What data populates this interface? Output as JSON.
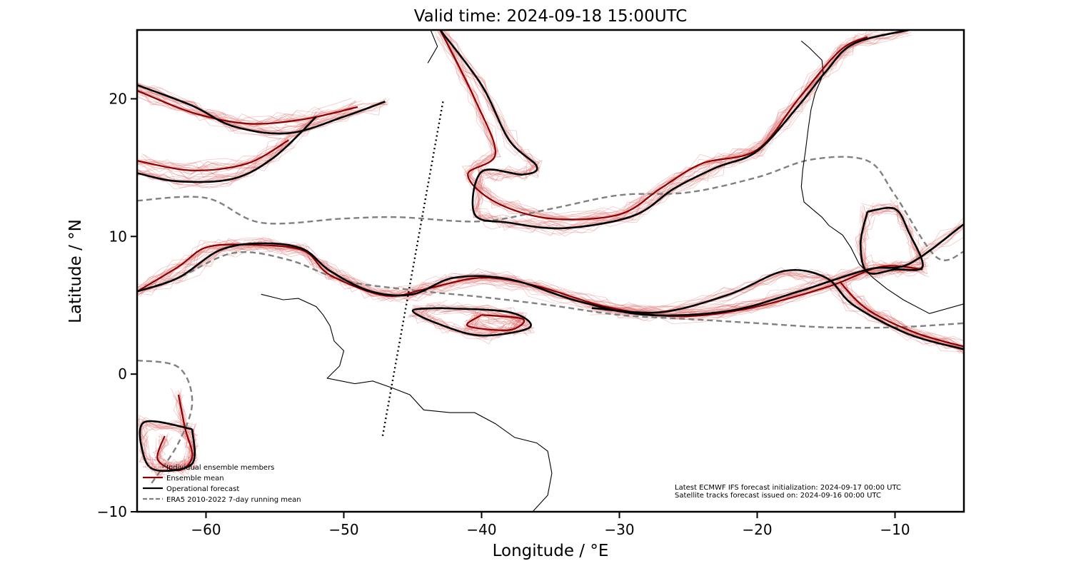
{
  "title": "Valid time: 2024-09-18 15:00UTC",
  "xlabel": "Longitude / °E",
  "ylabel": "Latitude / °N",
  "xlim": [
    -65,
    -5
  ],
  "ylim": [
    -10,
    25
  ],
  "xticks": [
    {
      "value": -60,
      "label": "−60"
    },
    {
      "value": -50,
      "label": "−50"
    },
    {
      "value": -40,
      "label": "−40"
    },
    {
      "value": -30,
      "label": "−30"
    },
    {
      "value": -20,
      "label": "−20"
    },
    {
      "value": -10,
      "label": "−10"
    }
  ],
  "yticks": [
    {
      "value": 20,
      "label": "20"
    },
    {
      "value": 10,
      "label": "10"
    },
    {
      "value": 0,
      "label": "0"
    },
    {
      "value": -10,
      "label": "−10"
    }
  ],
  "legend": {
    "placement": "bottom-left",
    "entries": [
      {
        "label": "Individual ensemble members",
        "color": "#e07878",
        "style": "thin"
      },
      {
        "label": "Ensemble mean",
        "color": "#8b0000",
        "style": "solid"
      },
      {
        "label": "Operational forecast",
        "color": "#000000",
        "style": "solid"
      },
      {
        "label": "ERA5 2010-2022 7-day running mean",
        "color": "#808080",
        "style": "dashed"
      }
    ]
  },
  "notes": [
    "Latest ECMWF IFS forecast initialization: 2024-09-17 00:00 UTC",
    "Satellite tracks forecast issued on: 2024-09-16 00:00 UTC"
  ],
  "colors": {
    "members": "#e07878",
    "mean": "#8b0000",
    "operational": "#000000",
    "era5": "#808080",
    "coast": "#000000"
  },
  "chart_data": {
    "type": "map",
    "satellite_track": [
      [
        -42.8,
        19.8
      ],
      [
        -47.2,
        -4.6
      ]
    ],
    "era5_contours": [
      [
        [
          -65,
          12.6
        ],
        [
          -60,
          12.8
        ],
        [
          -56,
          11.0
        ],
        [
          -50,
          11.3
        ],
        [
          -46,
          11.4
        ],
        [
          -40,
          11.1
        ],
        [
          -35,
          12.0
        ],
        [
          -30,
          13.0
        ],
        [
          -25,
          13.2
        ],
        [
          -20,
          14.3
        ],
        [
          -16,
          15.6
        ],
        [
          -12,
          15.5
        ],
        [
          -10,
          13.0
        ],
        [
          -7,
          8.5
        ],
        [
          -5,
          8.9
        ]
      ],
      [
        [
          -65,
          6.0
        ],
        [
          -62,
          7.0
        ],
        [
          -58,
          8.8
        ],
        [
          -54,
          8.3
        ],
        [
          -50,
          6.8
        ],
        [
          -45,
          6.1
        ],
        [
          -40,
          5.6
        ],
        [
          -35,
          5.0
        ],
        [
          -30,
          4.3
        ],
        [
          -25,
          4.0
        ],
        [
          -20,
          3.7
        ],
        [
          -15,
          3.4
        ],
        [
          -10,
          3.4
        ],
        [
          -5,
          3.7
        ]
      ],
      [
        [
          -65,
          1.0
        ],
        [
          -62,
          0.5
        ],
        [
          -61,
          -2.0
        ],
        [
          -62,
          -5.0
        ],
        [
          -64,
          -8.0
        ]
      ]
    ],
    "operational_contours": [
      [
        [
          -65,
          21.0
        ],
        [
          -61,
          19.5
        ],
        [
          -58,
          18.0
        ],
        [
          -54,
          17.5
        ],
        [
          -50,
          18.7
        ],
        [
          -47,
          19.8
        ]
      ],
      [
        [
          -65,
          14.6
        ],
        [
          -62,
          14.0
        ],
        [
          -58,
          14.2
        ],
        [
          -55,
          15.8
        ],
        [
          -52,
          18.7
        ]
      ],
      [
        [
          -65,
          6.0
        ],
        [
          -62,
          7.0
        ],
        [
          -59,
          9.0
        ],
        [
          -56,
          9.5
        ],
        [
          -53,
          9.1
        ],
        [
          -51,
          7.5
        ],
        [
          -48,
          6.0
        ],
        [
          -45,
          5.8
        ],
        [
          -42,
          7.0
        ],
        [
          -38,
          6.9
        ],
        [
          -33,
          5.3
        ],
        [
          -28,
          4.3
        ],
        [
          -22,
          4.6
        ],
        [
          -17,
          6.0
        ],
        [
          -12,
          7.6
        ],
        [
          -9,
          8.0
        ],
        [
          -5,
          10.9
        ]
      ],
      [
        [
          -43,
          25
        ],
        [
          -40,
          21
        ],
        [
          -38,
          17
        ],
        [
          -36,
          15.1
        ],
        [
          -37,
          14.5
        ],
        [
          -40,
          14.7
        ],
        [
          -40.5,
          11.6
        ],
        [
          -38,
          11.0
        ],
        [
          -34,
          10.6
        ],
        [
          -29,
          11.5
        ],
        [
          -26,
          13.5
        ],
        [
          -23,
          15.0
        ],
        [
          -20,
          16.2
        ],
        [
          -17,
          19.5
        ],
        [
          -15,
          22.0
        ],
        [
          -13,
          24.0
        ],
        [
          -9,
          25
        ]
      ],
      [
        [
          -5,
          1.8
        ],
        [
          -9,
          2.9
        ],
        [
          -13,
          5.0
        ],
        [
          -15,
          7.0
        ],
        [
          -18,
          7.5
        ],
        [
          -22,
          5.8
        ],
        [
          -27,
          4.5
        ],
        [
          -32,
          4.8
        ]
      ],
      [
        [
          -12,
          11.8
        ],
        [
          -10,
          12.0
        ],
        [
          -9,
          10.3
        ],
        [
          -8,
          7.8
        ],
        [
          -10,
          7.6
        ],
        [
          -12,
          7.4
        ],
        [
          -12.5,
          9.5
        ],
        [
          -12,
          11.8
        ]
      ],
      [
        [
          -61,
          -4.0
        ],
        [
          -61,
          -6.5
        ],
        [
          -63.5,
          -7.0
        ],
        [
          -64.5,
          -6.0
        ],
        [
          -64.5,
          -3.5
        ],
        [
          -61,
          -4.0
        ]
      ],
      [
        [
          -43,
          4.8
        ],
        [
          -38,
          4.5
        ],
        [
          -36.5,
          3.4
        ],
        [
          -40,
          2.8
        ],
        [
          -43,
          3.6
        ],
        [
          -45,
          4.6
        ],
        [
          -43,
          4.8
        ]
      ]
    ],
    "mean_contours": [
      [
        [
          -65,
          20.6
        ],
        [
          -61,
          19.0
        ],
        [
          -57,
          18.2
        ],
        [
          -53,
          18.5
        ],
        [
          -49,
          19.4
        ]
      ],
      [
        [
          -65,
          15.5
        ],
        [
          -61,
          14.8
        ],
        [
          -57,
          15.3
        ],
        [
          -54,
          17.0
        ]
      ],
      [
        [
          -65,
          6.0
        ],
        [
          -62,
          7.8
        ],
        [
          -60,
          9.2
        ],
        [
          -57,
          9.4
        ],
        [
          -53,
          9.0
        ],
        [
          -51,
          7.2
        ],
        [
          -47,
          5.7
        ],
        [
          -44,
          6.2
        ],
        [
          -40,
          7.0
        ],
        [
          -36,
          6.4
        ],
        [
          -31,
          4.9
        ],
        [
          -26,
          4.2
        ],
        [
          -21,
          4.7
        ],
        [
          -15,
          6.3
        ],
        [
          -11,
          7.8
        ],
        [
          -8,
          7.6
        ]
      ],
      [
        [
          -43,
          25
        ],
        [
          -40.5,
          20
        ],
        [
          -39,
          16
        ],
        [
          -41,
          14.5
        ],
        [
          -39,
          12.5
        ],
        [
          -35,
          11.3
        ],
        [
          -30,
          11.6
        ],
        [
          -27,
          13.5
        ],
        [
          -24,
          15.3
        ],
        [
          -20,
          16.3
        ],
        [
          -17,
          20.0
        ],
        [
          -14,
          23.5
        ],
        [
          -12,
          24.5
        ]
      ],
      [
        [
          -40,
          4.3
        ],
        [
          -37,
          4.0
        ],
        [
          -38,
          3.2
        ],
        [
          -41,
          3.5
        ],
        [
          -40,
          4.3
        ]
      ],
      [
        [
          -5,
          2.0
        ],
        [
          -8.5,
          3.0
        ],
        [
          -12,
          4.7
        ],
        [
          -14,
          6.7
        ]
      ],
      [
        [
          -62,
          -1.5
        ],
        [
          -61.5,
          -4.0
        ],
        [
          -61,
          -6.0
        ],
        [
          -62,
          -7.0
        ],
        [
          -63.5,
          -6.2
        ],
        [
          -63,
          -4.5
        ]
      ]
    ],
    "ensemble_member_count": 50,
    "coastlines": [
      [
        [
          -56,
          5.8
        ],
        [
          -54.4,
          5.4
        ],
        [
          -53.3,
          5.5
        ],
        [
          -52,
          4.9
        ],
        [
          -51.5,
          4.3
        ],
        [
          -51,
          3.5
        ],
        [
          -50.7,
          2.4
        ],
        [
          -50.0,
          1.7
        ],
        [
          -50.3,
          0.6
        ],
        [
          -51.2,
          -0.3
        ],
        [
          -49.2,
          -0.7
        ],
        [
          -47.9,
          -0.5
        ],
        [
          -46.5,
          -1.0
        ],
        [
          -45.2,
          -1.5
        ],
        [
          -44.2,
          -2.6
        ],
        [
          -42.3,
          -2.8
        ],
        [
          -40.5,
          -2.8
        ],
        [
          -39.0,
          -3.6
        ],
        [
          -37.6,
          -4.6
        ],
        [
          -36.0,
          -5.0
        ],
        [
          -35.2,
          -5.6
        ],
        [
          -34.9,
          -7.2
        ],
        [
          -35.2,
          -8.8
        ],
        [
          -36.3,
          -10
        ]
      ],
      [
        [
          -43.7,
          25
        ],
        [
          -43.2,
          23.8
        ],
        [
          -43.9,
          22.6
        ]
      ],
      [
        [
          -16.8,
          24.2
        ],
        [
          -16.2,
          23.7
        ],
        [
          -15.3,
          22.8
        ],
        [
          -15.2,
          21.8
        ],
        [
          -15.8,
          20.4
        ],
        [
          -16.1,
          19.2
        ],
        [
          -16.3,
          17.8
        ],
        [
          -16.5,
          16.2
        ],
        [
          -16.7,
          14.8
        ],
        [
          -16.8,
          13.6
        ],
        [
          -16.6,
          12.5
        ],
        [
          -15.3,
          11.4
        ],
        [
          -14.8,
          10.8
        ],
        [
          -13.8,
          10.1
        ],
        [
          -13.2,
          9.2
        ],
        [
          -12.6,
          8.0
        ],
        [
          -11.6,
          7.0
        ],
        [
          -10.6,
          6.2
        ],
        [
          -9.4,
          5.4
        ],
        [
          -7.5,
          4.4
        ],
        [
          -5,
          5.1
        ]
      ]
    ]
  }
}
